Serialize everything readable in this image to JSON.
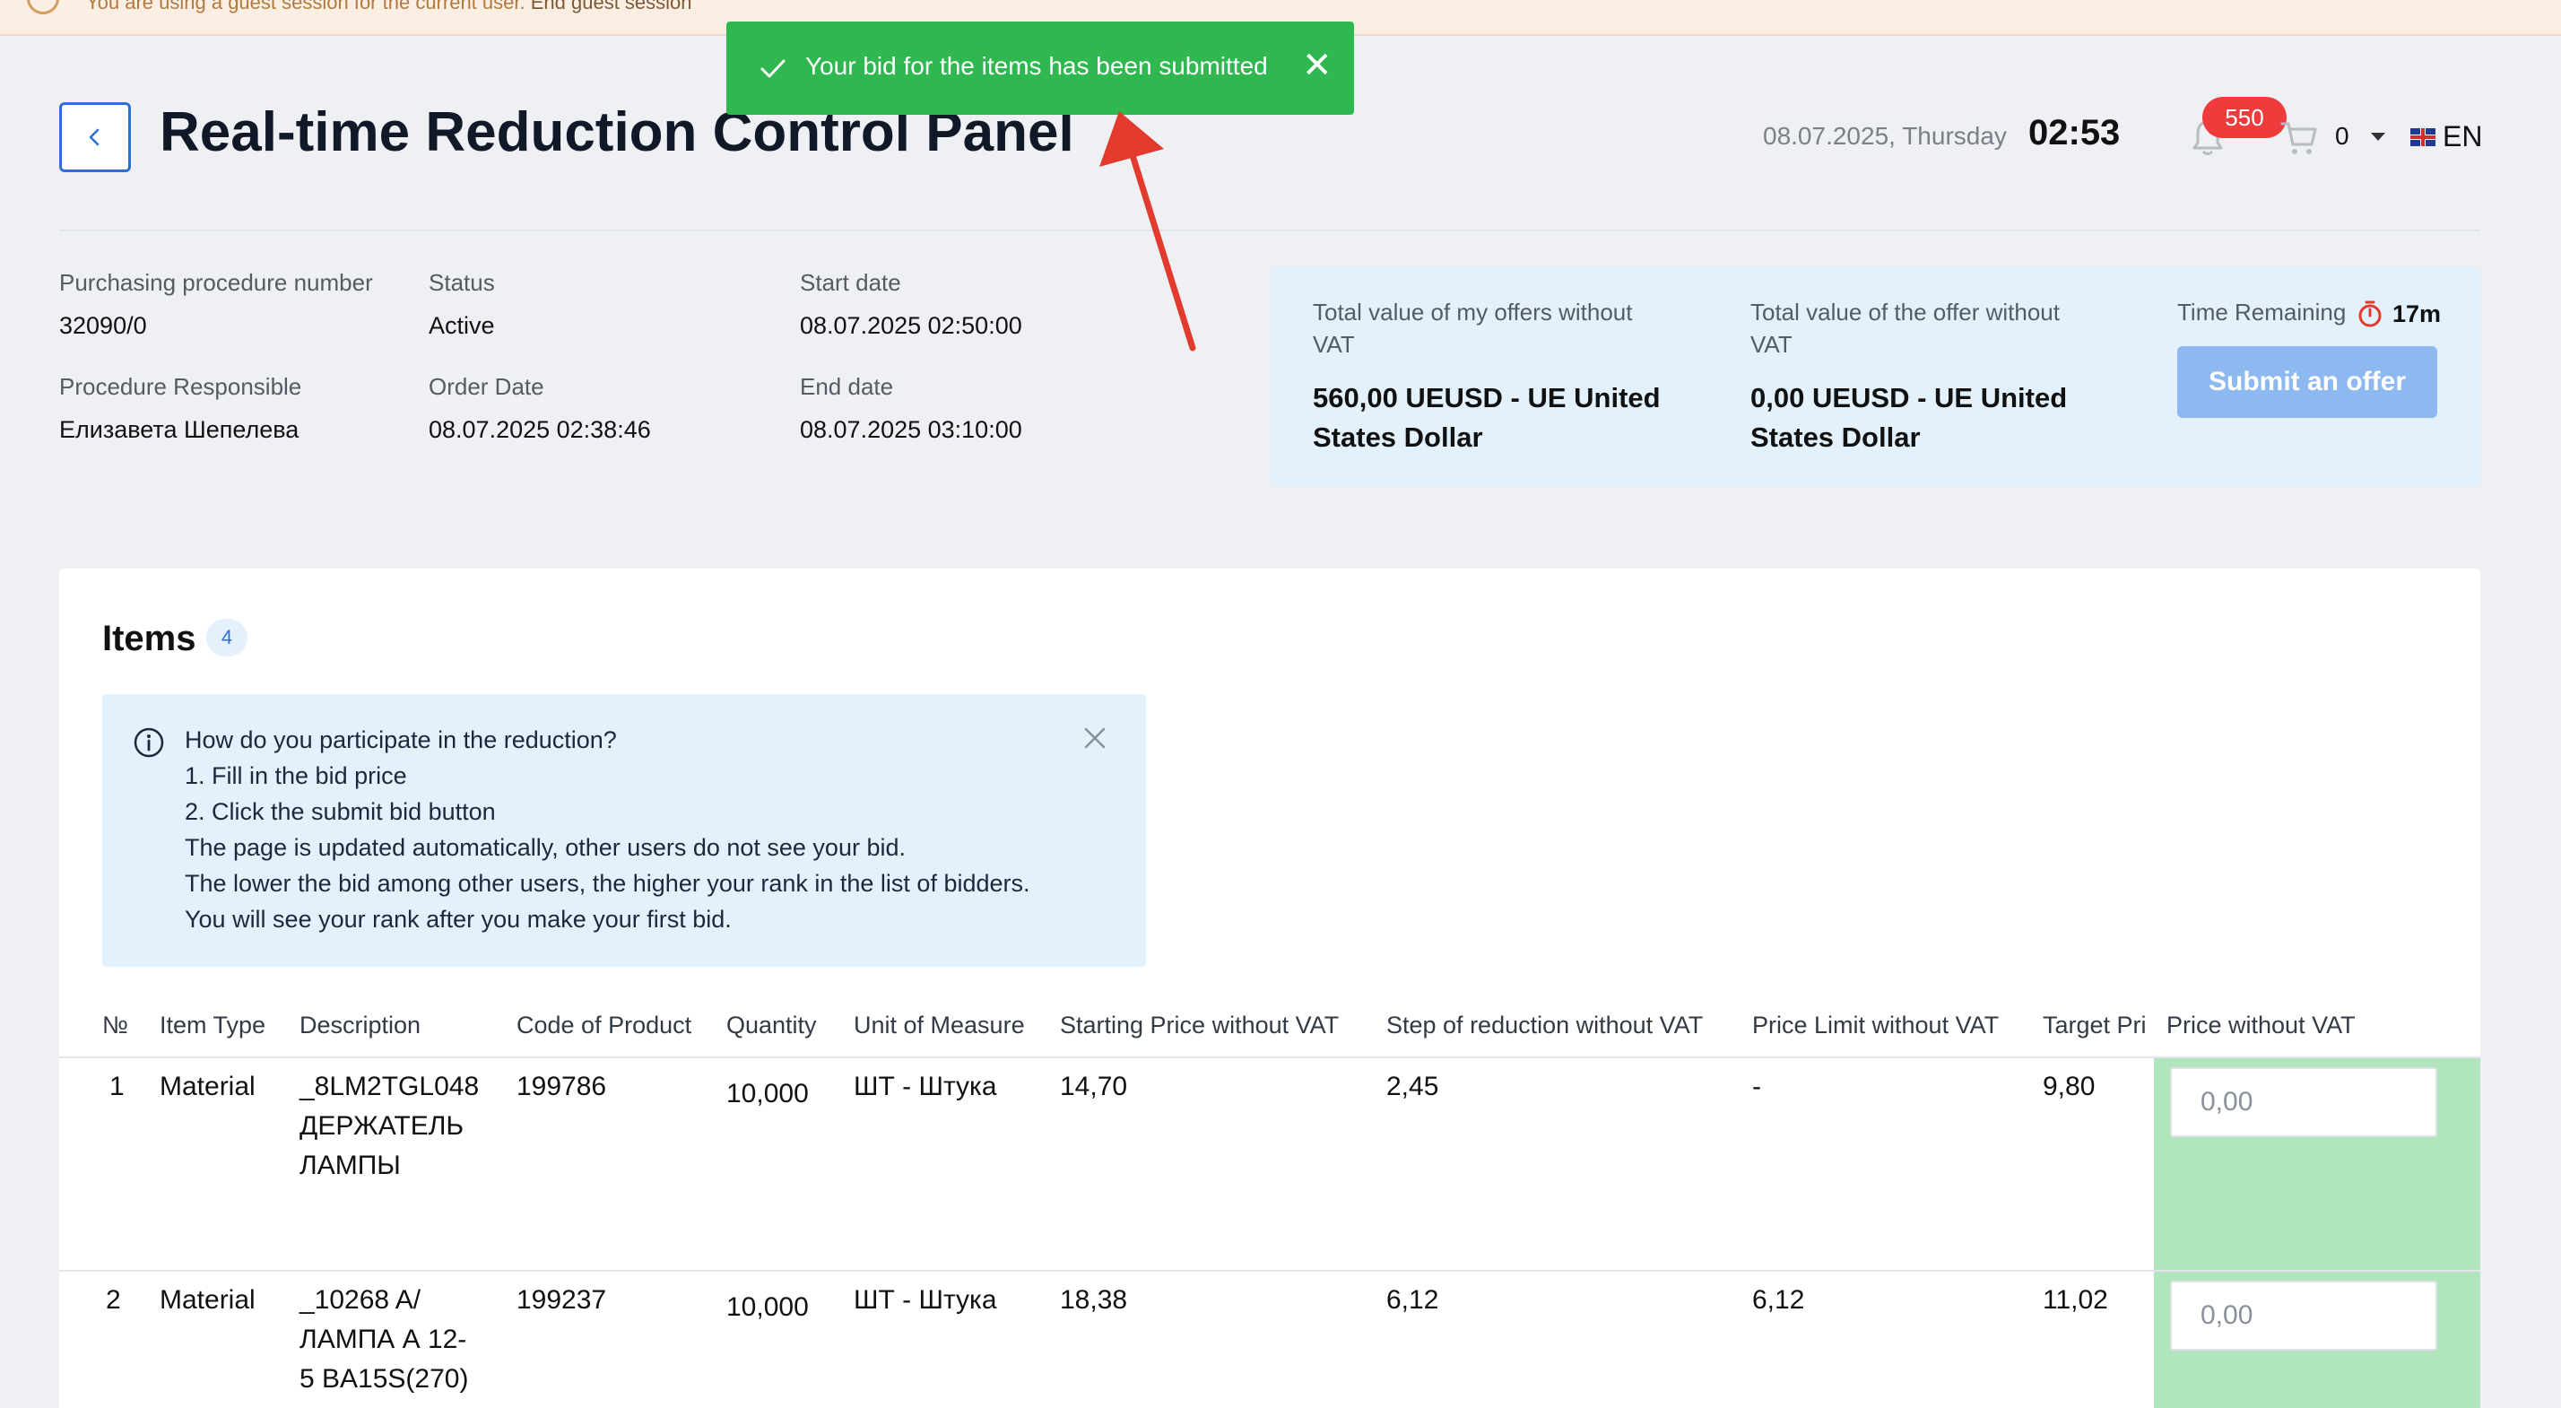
{
  "guest_bar": {
    "message": "You are using a guest session for the current user.",
    "end_link": "End guest session"
  },
  "toast": {
    "message": "Your bid for the items has been submitted",
    "close_symbol": "✕",
    "color": "#2eb84f"
  },
  "header": {
    "title": "Real-time Reduction Control Panel",
    "date": "08.07.2025, Thursday",
    "time": "02:53",
    "notifications_count": "550",
    "cart_count": "0",
    "language": "EN"
  },
  "procedure": {
    "number_label": "Purchasing procedure number",
    "number_value": "32090/0",
    "status_label": "Status",
    "status_value": "Active",
    "start_label": "Start date",
    "start_value": "08.07.2025 02:50:00",
    "responsible_label": "Procedure Responsible",
    "responsible_value": "Елизавета Шепелева",
    "order_label": "Order Date",
    "order_value": "08.07.2025 02:38:46",
    "end_label": "End date",
    "end_value": "08.07.2025 03:10:00"
  },
  "summary": {
    "my_offers_label_1": "Total value of my offers without",
    "my_offers_label_2": "VAT",
    "my_offers_value_1": "560,00 UEUSD - UE United",
    "my_offers_value_2": "States Dollar",
    "offer_label_1": "Total value of the offer without",
    "offer_label_2": "VAT",
    "offer_value_1": "0,00 UEUSD - UE United",
    "offer_value_2": "States Dollar",
    "time_label": "Time Remaining",
    "time_value": "17m",
    "submit_label": "Submit an offer"
  },
  "items": {
    "title": "Items",
    "count": "4",
    "info_lines": [
      "How do you participate in the reduction?",
      "1. Fill in the bid price",
      "2. Click the submit bid button",
      "The page is updated automatically, other users do not see your bid.",
      "The lower the bid among other users, the higher your rank in the list of bidders.",
      "You will see your rank after you make your first bid."
    ],
    "columns": [
      "№",
      "Item Type",
      "Description",
      "Code of Product",
      "Quantity",
      "Unit of Measure",
      "Starting Price without VAT",
      "Step of reduction without VAT",
      "Price Limit without VAT",
      "Target Pri",
      "Price without VAT"
    ],
    "rows": [
      {
        "no": "1",
        "type": "Material",
        "desc_1": "_8LM2TGL048",
        "desc_2": "ДЕРЖАТЕЛЬ",
        "desc_3": "ЛАМПЫ",
        "code": "199786",
        "quantity": "10,000",
        "unit": "ШТ - Штука",
        "start_price": "14,70",
        "step": "2,45",
        "limit": "-",
        "target": "9,80",
        "price_placeholder": "0,00"
      },
      {
        "no": "2",
        "type": "Material",
        "desc_1": "_10268 A/",
        "desc_2": "ЛАМПА А 12-",
        "desc_3": "5 BA15S(270)",
        "code": "199237",
        "quantity": "10,000",
        "unit": "ШТ - Штука",
        "start_price": "18,38",
        "step": "6,12",
        "limit": "6,12",
        "target": "11,02",
        "price_placeholder": "0,00"
      }
    ]
  },
  "colors": {
    "accent": "#2f6fd4",
    "price_column": "#b1e5bd",
    "badge": "#ef3b3b",
    "annotation_arrow": "#e23b2e"
  }
}
